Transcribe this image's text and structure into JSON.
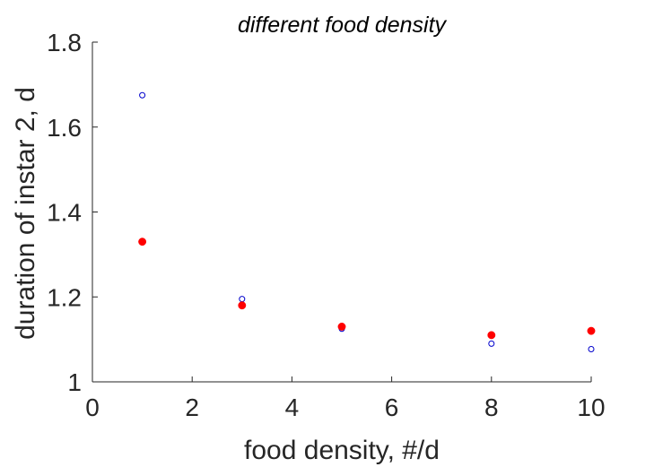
{
  "chart_data": {
    "type": "scatter",
    "title": "different food density",
    "xlabel": "food density, #/d",
    "ylabel": "duration of instar 2, d",
    "xlim": [
      0,
      10
    ],
    "ylim": [
      1,
      1.8
    ],
    "xticks": [
      "0",
      "2",
      "4",
      "6",
      "8",
      "10"
    ],
    "yticks": [
      "1",
      "1.2",
      "1.4",
      "1.6",
      "1.8"
    ],
    "grid": false,
    "series": [
      {
        "marker": "open-circle",
        "color": "#0000cc",
        "x": [
          1,
          3,
          5,
          8,
          10
        ],
        "y": [
          1.675,
          1.195,
          1.125,
          1.09,
          1.077
        ]
      },
      {
        "marker": "filled-circle",
        "color": "#ff0000",
        "x": [
          1,
          3,
          5,
          8,
          10
        ],
        "y": [
          1.33,
          1.18,
          1.13,
          1.11,
          1.12
        ]
      }
    ]
  }
}
